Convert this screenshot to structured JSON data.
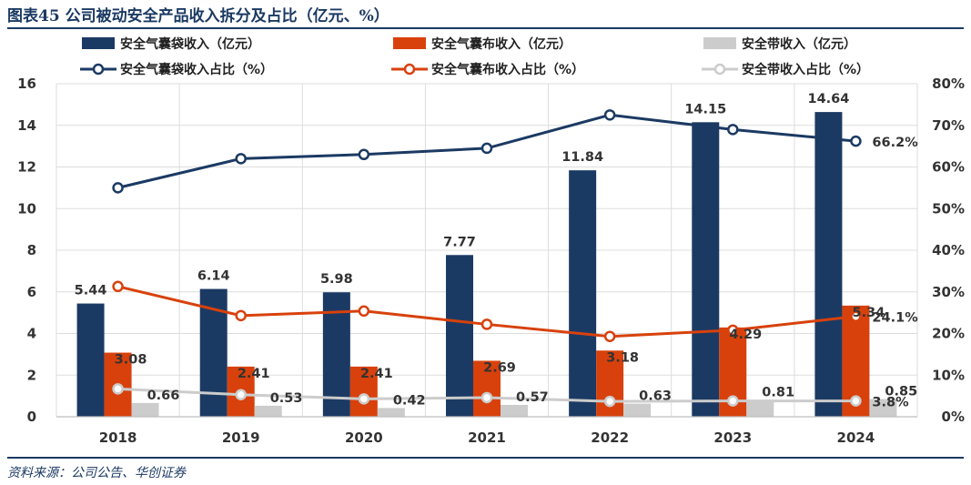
{
  "title": "图表45 公司被动安全产品收入拆分及占比（亿元、%）",
  "source": "资料来源：公司公告、华创证券",
  "colors": {
    "navy": "#1b3a63",
    "orange": "#d8410c",
    "gray": "#cccccc",
    "grid": "#dddddd",
    "accent": "#1b3a63"
  },
  "chart_data": {
    "type": "bar+line",
    "categories": [
      "2018",
      "2019",
      "2020",
      "2021",
      "2022",
      "2023",
      "2024"
    ],
    "y_left": {
      "ticks": [
        "0",
        "2",
        "4",
        "6",
        "8",
        "10",
        "12",
        "14",
        "16"
      ],
      "lim": [
        0,
        16
      ]
    },
    "y_right": {
      "ticks": [
        "0%",
        "10%",
        "20%",
        "30%",
        "40%",
        "50%",
        "60%",
        "70%",
        "80%"
      ],
      "lim": [
        0,
        80
      ]
    },
    "bar_series": [
      {
        "name": "安全气囊袋收入（亿元）",
        "color": "#1b3a63",
        "values": [
          5.44,
          6.14,
          5.98,
          7.77,
          11.84,
          14.15,
          14.64
        ],
        "labels": [
          "5.44",
          "6.14",
          "5.98",
          "7.77",
          "11.84",
          "14.15",
          "14.64"
        ]
      },
      {
        "name": "安全气囊布收入（亿元）",
        "color": "#d8410c",
        "values": [
          3.08,
          2.41,
          2.41,
          2.69,
          3.18,
          4.29,
          5.34
        ],
        "labels": [
          "3.08",
          "2.41",
          "2.41",
          "2.69",
          "3.18",
          "4.29",
          "5.34"
        ]
      },
      {
        "name": "安全带收入（亿元）",
        "color": "#cccccc",
        "values": [
          0.66,
          0.53,
          0.42,
          0.57,
          0.63,
          0.81,
          0.85
        ],
        "labels": [
          "0.66",
          "0.53",
          "0.42",
          "0.57",
          "0.63",
          "0.81",
          "0.85"
        ]
      }
    ],
    "line_series": [
      {
        "name": "安全气囊袋收入占比（%）",
        "color": "#1b3a63",
        "values": [
          55.0,
          62.0,
          63.0,
          64.5,
          72.5,
          69.0,
          66.2
        ],
        "end_label": "66.2%"
      },
      {
        "name": "安全气囊布收入占比（%）",
        "color": "#d8410c",
        "values": [
          31.3,
          24.3,
          25.4,
          22.2,
          19.3,
          20.8,
          24.1
        ],
        "end_label": "24.1%"
      },
      {
        "name": "安全带收入占比（%）",
        "color": "#cccccc",
        "values": [
          6.7,
          5.3,
          4.3,
          4.6,
          3.7,
          3.8,
          3.8
        ],
        "end_label": "3.8%"
      }
    ]
  }
}
